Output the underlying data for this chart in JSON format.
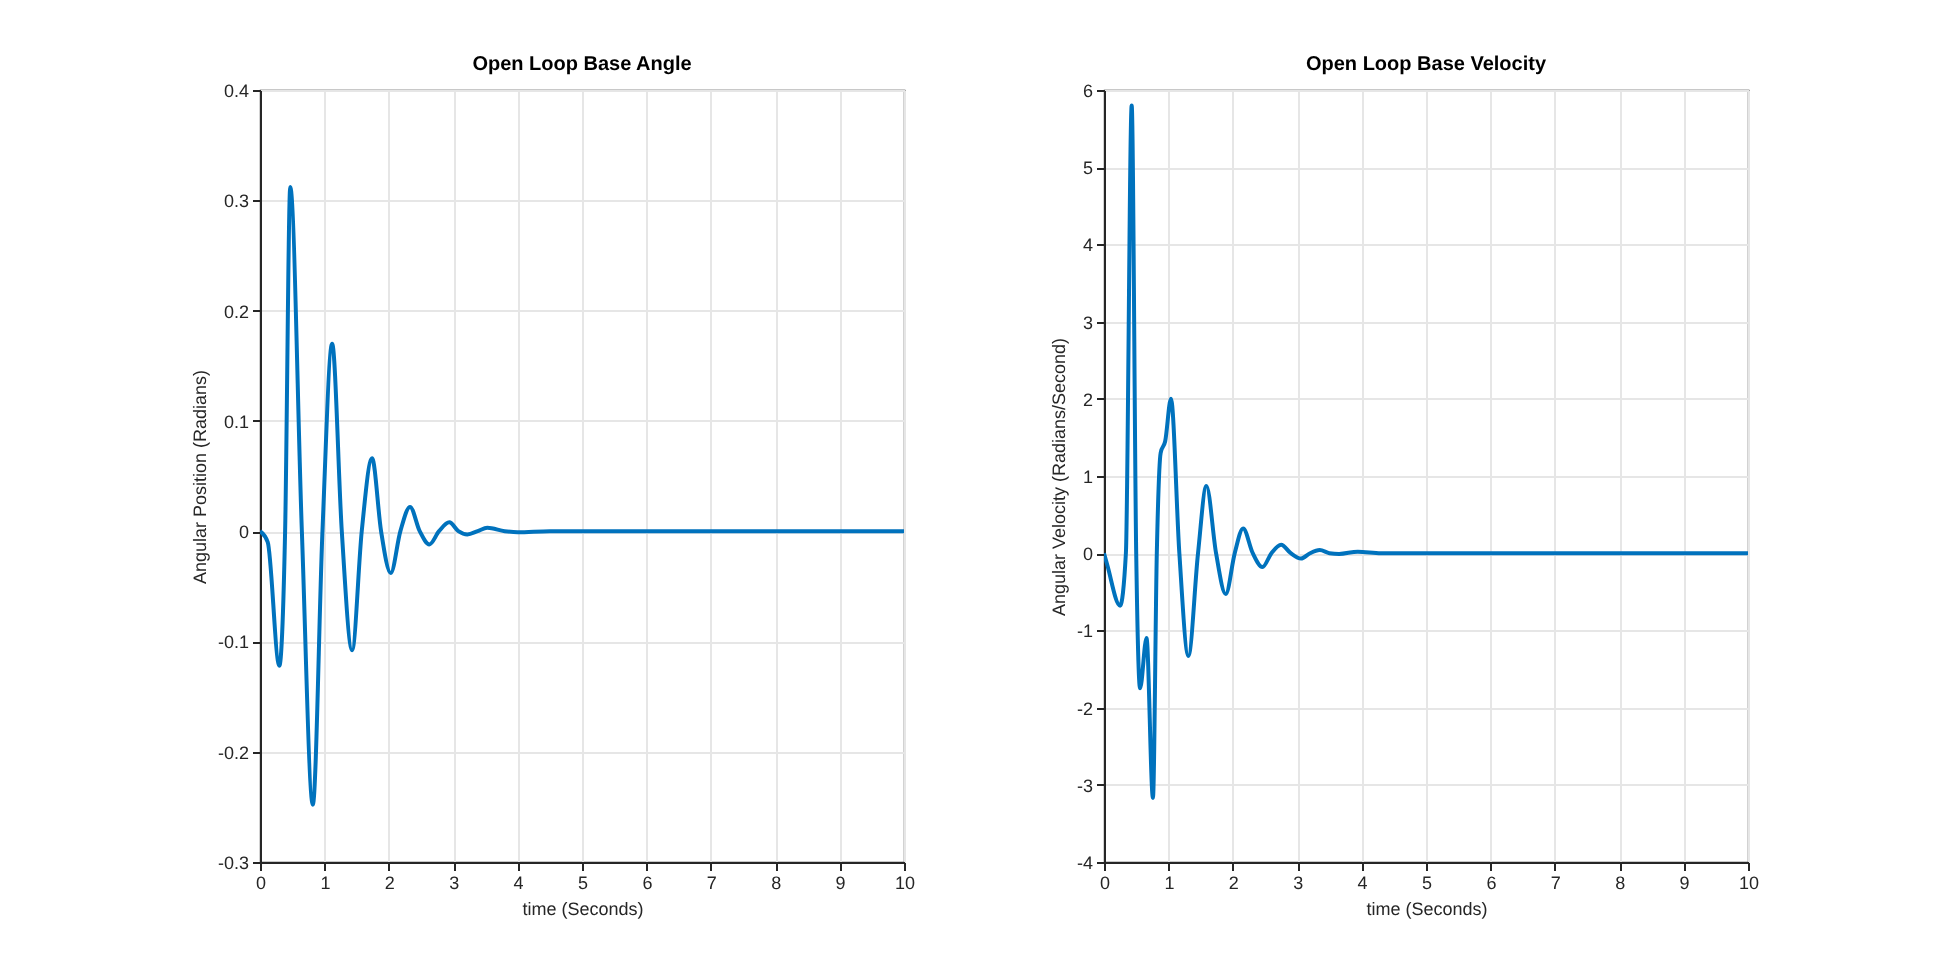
{
  "chart_data": [
    {
      "type": "line",
      "title": "Open Loop Base Angle",
      "xlabel": "time (Seconds)",
      "ylabel": "Angular Position (Radians)",
      "xlim": [
        0,
        10
      ],
      "xticks": [
        0,
        1,
        2,
        3,
        4,
        5,
        6,
        7,
        8,
        9,
        10
      ],
      "ylim": [
        -0.3,
        0.4
      ],
      "yticks": [
        -0.3,
        -0.2,
        -0.1,
        0,
        0.1,
        0.2,
        0.3,
        0.4
      ],
      "grid": true,
      "line_style": "solid",
      "x": [
        0,
        0.12,
        0.3,
        0.39,
        0.47,
        0.65,
        0.82,
        0.97,
        1.12,
        1.27,
        1.43,
        1.58,
        1.74,
        1.88,
        2.03,
        2.18,
        2.33,
        2.48,
        2.63,
        2.78,
        2.94,
        3.08,
        3.22,
        3.38,
        3.53,
        3.8,
        4.0,
        4.5,
        10
      ],
      "series": [
        {
          "color": "#0072bd",
          "values": [
            0,
            -0.01,
            -0.122,
            0,
            0.312,
            0,
            -0.248,
            0,
            0.17,
            0,
            -0.108,
            0,
            0.066,
            0,
            -0.038,
            0,
            0.022,
            0,
            -0.012,
            0,
            0.008,
            0,
            -0.003,
            0,
            0.003,
            0,
            -0.001,
            0,
            0
          ]
        }
      ]
    },
    {
      "type": "line",
      "title": "Open Loop Base Velocity",
      "xlabel": "time (Seconds)",
      "ylabel": "Angular Velocity (Radians/Second)",
      "xlim": [
        0,
        10
      ],
      "xticks": [
        0,
        1,
        2,
        3,
        4,
        5,
        6,
        7,
        8,
        9,
        10
      ],
      "ylim": [
        -4,
        6
      ],
      "yticks": [
        -4,
        -3,
        -2,
        -1,
        0,
        1,
        2,
        3,
        4,
        5,
        6
      ],
      "grid": true,
      "line_style": "solid",
      "x": [
        0,
        0.05,
        0.25,
        0.34,
        0.43,
        0.5,
        0.56,
        0.66,
        0.76,
        0.82,
        0.88,
        0.95,
        1.04,
        1.17,
        1.31,
        1.46,
        1.59,
        1.74,
        1.89,
        2.03,
        2.16,
        2.31,
        2.46,
        2.6,
        2.75,
        2.9,
        3.06,
        3.2,
        3.35,
        3.5,
        3.65,
        3.94,
        4.3,
        10
      ],
      "series": [
        {
          "color": "#0072bd",
          "values": [
            0,
            -0.15,
            -0.68,
            0,
            5.8,
            0,
            -1.75,
            -1.1,
            -3.17,
            0,
            1.3,
            1.45,
            2.0,
            0,
            -1.33,
            0,
            0.87,
            0,
            -0.53,
            0,
            0.32,
            0,
            -0.18,
            0,
            0.11,
            0,
            -0.07,
            0,
            0.04,
            0,
            -0.01,
            0.02,
            0,
            0
          ]
        }
      ]
    }
  ]
}
